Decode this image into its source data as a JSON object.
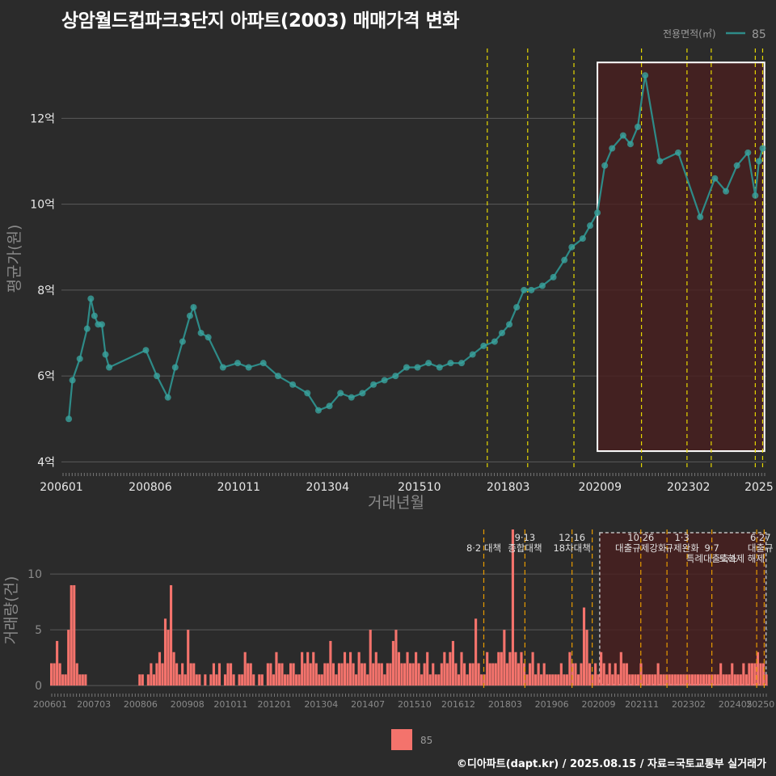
{
  "title": "상암월드컵파크3단지 아파트(2003) 매매가격 변화",
  "footer": "©디아파트(dapt.kr) / 2025.08.15 / 자료=국토교통부 실거래가",
  "colors": {
    "line": "#2e8b88",
    "point": "#3aa39e",
    "bar": "#f4736c",
    "highlight": "#4a1f1f",
    "policy": "#e6d800",
    "policy_bottom": "#e69a00"
  },
  "legend_top": {
    "title": "전용면적(㎡)",
    "label": "85"
  },
  "legend_bottom": {
    "label": "85"
  },
  "chart_data": [
    {
      "type": "line",
      "name": "price",
      "ylabel": "평균가(원)",
      "xlabel": "거래년월",
      "ylim": [
        3.8,
        13.7
      ],
      "xlim": [
        2006.0,
        2025.2
      ],
      "yticks": [
        4,
        6,
        8,
        10,
        12
      ],
      "ytick_labels": [
        "4억",
        "6억",
        "8억",
        "10억",
        "12억"
      ],
      "xticks": [
        2006.0,
        2008.42,
        2010.83,
        2013.25,
        2015.75,
        2018.17,
        2020.67,
        2023.08,
        2025.0
      ],
      "xtick_labels": [
        "200601",
        "200806",
        "201011",
        "201304",
        "201510",
        "201803",
        "202009",
        "202302",
        "2025"
      ],
      "policy_lines": [
        2017.6,
        2018.7,
        2019.96,
        2021.8,
        2023.04,
        2023.7,
        2024.9,
        2025.1
      ],
      "highlight": [
        2020.6,
        2025.15
      ],
      "highlight_y": [
        4.25,
        13.3
      ],
      "series": [
        {
          "name": "85",
          "x": [
            2006.2,
            2006.3,
            2006.5,
            2006.7,
            2006.8,
            2006.9,
            2007.0,
            2007.1,
            2007.2,
            2007.3,
            2008.3,
            2008.6,
            2008.9,
            2009.1,
            2009.3,
            2009.5,
            2009.6,
            2009.8,
            2010.0,
            2010.4,
            2010.8,
            2011.1,
            2011.5,
            2011.9,
            2012.3,
            2012.7,
            2013.0,
            2013.3,
            2013.6,
            2013.9,
            2014.2,
            2014.5,
            2014.8,
            2015.1,
            2015.4,
            2015.7,
            2016.0,
            2016.3,
            2016.6,
            2016.9,
            2017.2,
            2017.5,
            2017.8,
            2018.0,
            2018.2,
            2018.4,
            2018.6,
            2018.8,
            2019.1,
            2019.4,
            2019.7,
            2019.9,
            2020.2,
            2020.4,
            2020.6,
            2020.8,
            2021.0,
            2021.3,
            2021.5,
            2021.7,
            2021.9,
            2022.3,
            2022.8,
            2023.4,
            2023.8,
            2024.1,
            2024.4,
            2024.7,
            2024.9,
            2025.0,
            2025.1
          ],
          "values": [
            5.0,
            5.9,
            6.4,
            7.1,
            7.8,
            7.4,
            7.2,
            7.2,
            6.5,
            6.2,
            6.6,
            6.0,
            5.5,
            6.2,
            6.8,
            7.4,
            7.6,
            7.0,
            6.9,
            6.2,
            6.3,
            6.2,
            6.3,
            6.0,
            5.8,
            5.6,
            5.2,
            5.3,
            5.6,
            5.5,
            5.6,
            5.8,
            5.9,
            6.0,
            6.2,
            6.2,
            6.3,
            6.2,
            6.3,
            6.3,
            6.5,
            6.7,
            6.8,
            7.0,
            7.2,
            7.6,
            8.0,
            8.0,
            8.1,
            8.3,
            8.7,
            9.0,
            9.2,
            9.5,
            9.8,
            10.9,
            11.3,
            11.6,
            11.4,
            11.8,
            13.0,
            11.0,
            11.2,
            9.7,
            10.6,
            10.3,
            10.9,
            11.2,
            10.2,
            11.0,
            11.3
          ]
        }
      ]
    },
    {
      "type": "bar",
      "name": "volume",
      "ylabel": "거래량(건)",
      "ylim": [
        -0.5,
        14
      ],
      "yticks": [
        0,
        5,
        10
      ],
      "ytick_labels": [
        "0",
        "5",
        "10"
      ],
      "xlim": [
        2006.0,
        2025.2
      ],
      "xticks": [
        2006.0,
        2007.17,
        2008.42,
        2009.67,
        2010.83,
        2012.0,
        2013.25,
        2014.5,
        2015.75,
        2016.92,
        2018.17,
        2019.42,
        2020.67,
        2021.83,
        2023.08,
        2024.33,
        2025.0
      ],
      "xtick_labels": [
        "200601",
        "200703",
        "200806",
        "200908",
        "201011",
        "201201",
        "201304",
        "201407",
        "201510",
        "201612",
        "201803",
        "201906",
        "202009",
        "202111",
        "202302",
        "202405",
        "20250"
      ],
      "highlight": [
        2020.7,
        2025.15
      ],
      "policy_lines": [
        2017.6,
        2018.7,
        2019.96,
        2020.5,
        2021.8,
        2022.5,
        2023.04,
        2023.7,
        2024.9,
        2025.1
      ],
      "annotations": [
        {
          "x": 2017.6,
          "text": "8·2 대책",
          "row": 1
        },
        {
          "x": 2018.7,
          "text": "9·13",
          "row": 0
        },
        {
          "x": 2018.7,
          "text": "종합대책",
          "row": 1
        },
        {
          "x": 2019.96,
          "text": "12·16",
          "row": 0
        },
        {
          "x": 2019.96,
          "text": "18차대책",
          "row": 1
        },
        {
          "x": 2021.8,
          "text": "10·26",
          "row": 0
        },
        {
          "x": 2021.8,
          "text": "대출규제강화",
          "row": 1
        },
        {
          "x": 2022.9,
          "text": "1·3",
          "row": 0
        },
        {
          "x": 2022.9,
          "text": "규제완화",
          "row": 1
        },
        {
          "x": 2023.7,
          "text": "9·7",
          "row": 1
        },
        {
          "x": 2023.7,
          "text": "특례대출축소",
          "row": 2
        },
        {
          "x": 2024.5,
          "text": "토허제 해제",
          "row": 2
        },
        {
          "x": 2025.0,
          "text": "6·27",
          "row": 0
        },
        {
          "x": 2025.0,
          "text": "대출규",
          "row": 1
        }
      ],
      "series": [
        {
          "name": "85",
          "values": [
            2,
            2,
            4,
            2,
            1,
            1,
            5,
            9,
            9,
            2,
            1,
            1,
            1,
            0,
            0,
            0,
            0,
            0,
            0,
            0,
            0,
            0,
            0,
            0,
            0,
            0,
            0,
            0,
            0,
            0,
            0,
            1,
            1,
            0,
            1,
            2,
            1,
            2,
            3,
            2,
            6,
            5,
            9,
            3,
            2,
            1,
            2,
            1,
            5,
            2,
            2,
            1,
            1,
            0,
            1,
            0,
            1,
            2,
            1,
            2,
            0,
            1,
            2,
            2,
            1,
            0,
            1,
            1,
            3,
            2,
            2,
            1,
            0,
            1,
            1,
            0,
            2,
            2,
            1,
            3,
            2,
            2,
            1,
            1,
            2,
            2,
            1,
            1,
            3,
            2,
            3,
            2,
            3,
            2,
            1,
            1,
            2,
            2,
            4,
            2,
            1,
            2,
            2,
            3,
            2,
            3,
            2,
            1,
            3,
            2,
            2,
            1,
            5,
            2,
            3,
            2,
            2,
            1,
            2,
            2,
            4,
            5,
            3,
            2,
            2,
            3,
            2,
            2,
            3,
            2,
            1,
            2,
            3,
            1,
            2,
            1,
            1,
            2,
            3,
            2,
            3,
            4,
            2,
            1,
            3,
            2,
            1,
            2,
            2,
            6,
            2,
            1,
            1,
            3,
            2,
            2,
            2,
            3,
            3,
            5,
            2,
            3,
            14,
            3,
            2,
            3,
            2,
            1,
            2,
            3,
            1,
            2,
            1,
            2,
            1,
            1,
            1,
            1,
            1,
            2,
            1,
            1,
            3,
            2,
            2,
            1,
            2,
            7,
            5,
            2,
            1,
            2,
            1,
            3,
            2,
            1,
            2,
            1,
            2,
            1,
            3,
            2,
            2,
            1,
            1,
            1,
            1,
            2,
            1,
            1,
            1,
            1,
            1,
            2,
            1,
            1,
            1,
            1,
            1,
            1,
            1,
            1,
            1,
            1,
            1,
            1,
            1,
            1,
            1,
            1,
            1,
            1,
            1,
            1,
            1,
            2,
            1,
            1,
            1,
            2,
            1,
            1,
            1,
            2,
            1,
            2,
            2,
            2,
            3,
            2,
            2,
            1
          ]
        }
      ]
    }
  ]
}
